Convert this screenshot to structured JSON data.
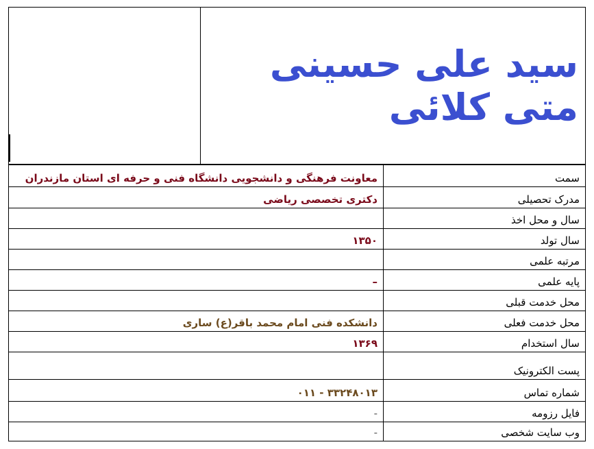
{
  "name": "سید علی حسینی متی کلائی",
  "colors": {
    "title": "#3b4fd0",
    "value_red": "#7a0a1a",
    "value_brown": "#6b4a1e"
  },
  "rows": [
    {
      "label": "سمت",
      "value": "معاونت فرهنگی و دانشجویی دانشگاه فنی و حرفه ای استان مازندران"
    },
    {
      "label": "مدرک تحصیلی",
      "value": "دکتری تخصصی ریاضی"
    },
    {
      "label": "سال و محل اخذ",
      "value": ""
    },
    {
      "label": "سال تولد",
      "value": "۱۳۵۰"
    },
    {
      "label": "مرتبه علمی",
      "value": ""
    },
    {
      "label": "پایه علمی",
      "value": "–"
    },
    {
      "label": "محل خدمت قبلی",
      "value": ""
    },
    {
      "label": "محل خدمت فعلی",
      "value": "دانشکده فنی امام محمد باقر(ع) ساری"
    },
    {
      "label": "سال استخدام",
      "value": "۱۳۶۹"
    },
    {
      "label": "پست الکترونیک",
      "value": ""
    },
    {
      "label": "شماره تماس",
      "value": "۰۱۱ - ۳۳۲۴۸۰۱۳"
    },
    {
      "label": "فایل رزومه",
      "value": "-"
    },
    {
      "label": "وب سایت شخصی",
      "value": "-"
    }
  ]
}
